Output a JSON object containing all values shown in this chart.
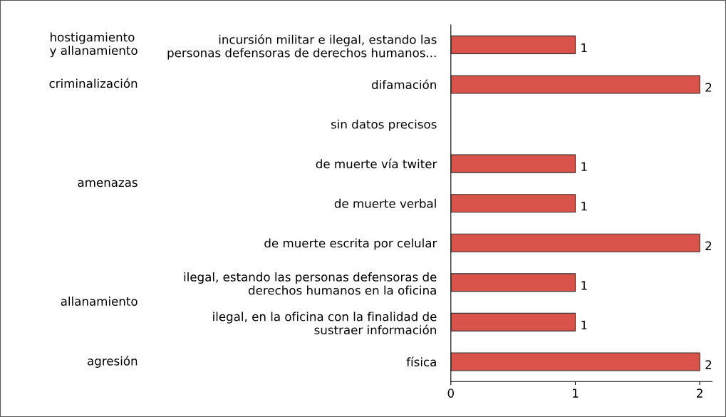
{
  "chart_data": {
    "type": "bar",
    "orientation": "horizontal",
    "categories": [
      "incursión militar e ilegal, estando las\npersonas defensoras de derechos humanos...",
      "difamación",
      "sin datos precisos",
      "de muerte vía twiter",
      "de muerte verbal",
      "de muerte escrita por celular",
      "ilegal, estando las personas defensoras de\nderechos humanos en la oficina",
      "ilegal, en la oficina con la finalidad de\nsustraer información",
      "física"
    ],
    "values": [
      1,
      2,
      null,
      1,
      1,
      2,
      1,
      1,
      2
    ],
    "color": "#d9534a",
    "xlim": [
      0,
      2.1
    ],
    "xticks": [
      0,
      1,
      2
    ],
    "data_labels": true,
    "grid": false,
    "annotations": [
      "hostigamiento\ny allanamiento",
      "criminalización",
      "amenazas",
      "allanamiento",
      "agresión"
    ]
  }
}
